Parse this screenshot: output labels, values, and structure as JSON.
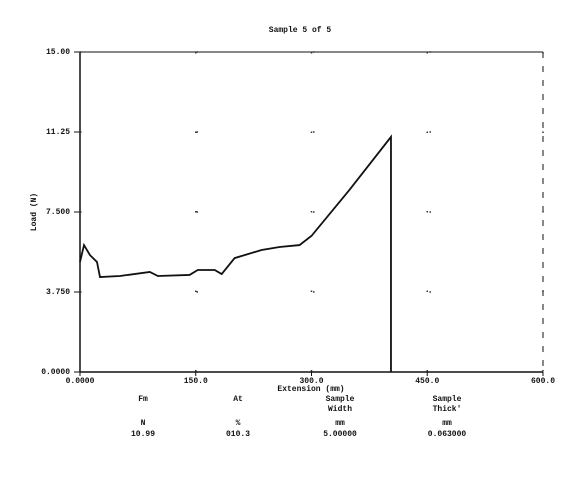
{
  "chart_data": {
    "type": "line",
    "title": "Sample 5 of 5",
    "x_label": "Extension (mm)",
    "y_label": "Load (N)",
    "x": [
      0,
      5.2,
      12.9,
      22,
      25.9,
      51.7,
      90.5,
      100.9,
      142,
      152.6,
      174.6,
      183.6,
      200.4,
      235.3,
      258.6,
      284.5,
      300,
      349,
      403,
      403
    ],
    "values": [
      5.16,
      5.95,
      5.48,
      5.16,
      4.45,
      4.5,
      4.69,
      4.5,
      4.55,
      4.78,
      4.78,
      4.59,
      5.34,
      5.72,
      5.86,
      5.95,
      6.38,
      8.53,
      11.02,
      0
    ],
    "color": "#111111",
    "xlim": [
      0,
      600
    ],
    "ylim": [
      0,
      15
    ],
    "xticks": [
      {
        "value": 0,
        "label": "0.0000"
      },
      {
        "value": 150,
        "label": "150.0"
      },
      {
        "value": 300,
        "label": "300.0"
      },
      {
        "value": 450,
        "label": "450.0"
      },
      {
        "value": 600,
        "label": "600.0"
      }
    ],
    "yticks": [
      {
        "value": 0,
        "label": "0.0000"
      },
      {
        "value": 3.75,
        "label": "3.750"
      },
      {
        "value": 7.5,
        "label": "7.500"
      },
      11.25,
      {
        "value": 15,
        "label": "15.00"
      }
    ],
    "grid": true
  },
  "results": {
    "headers": [
      [
        "Fm"
      ],
      [
        "At"
      ],
      [
        "Sample",
        "Width"
      ],
      [
        "Sample",
        "Thick'"
      ]
    ],
    "units": [
      "N",
      "%",
      "mm",
      "mm"
    ],
    "values": [
      "10.99",
      "010.3",
      "5.00000",
      "0.063000"
    ]
  }
}
